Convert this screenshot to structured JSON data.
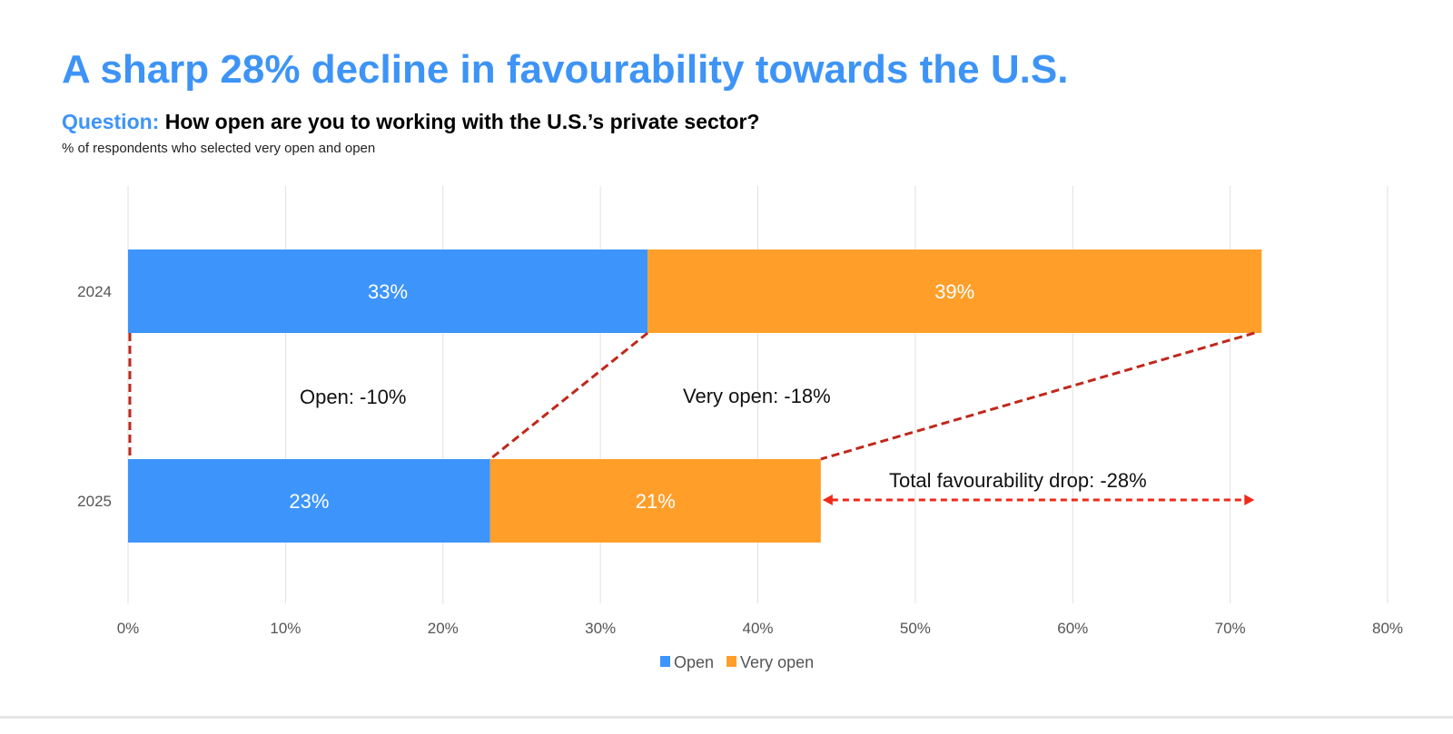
{
  "header": {
    "title": "A sharp 28% decline in favourability towards the U.S.",
    "question_label": "Question:",
    "question_text": "How open are you to working with the U.S.’s private sector?",
    "subtitle": "% of respondents who selected very open and open"
  },
  "chart_data": {
    "type": "bar",
    "orientation": "horizontal",
    "stacked": true,
    "categories": [
      "2024",
      "2025"
    ],
    "series": [
      {
        "name": "Open",
        "values": [
          33,
          23
        ],
        "labels": [
          "33%",
          "23%"
        ],
        "color": "#3d94fb"
      },
      {
        "name": "Very open",
        "values": [
          39,
          21
        ],
        "labels": [
          "39%",
          "21%"
        ],
        "color": "#ff9f2a"
      }
    ],
    "xlim": [
      0,
      80
    ],
    "xticks": [
      0,
      10,
      20,
      30,
      40,
      50,
      60,
      70,
      80
    ],
    "xtick_labels": [
      "0%",
      "10%",
      "20%",
      "30%",
      "40%",
      "50%",
      "60%",
      "70%",
      "80%"
    ],
    "grid": true,
    "legend_position": "bottom",
    "annotations": {
      "open_change": "Open: -10%",
      "very_open_change": "Very open: -18%",
      "total_drop": "Total favourability drop: -28%",
      "connector_color": "#c0281c",
      "arrow_color": "#ee2a1a"
    }
  }
}
